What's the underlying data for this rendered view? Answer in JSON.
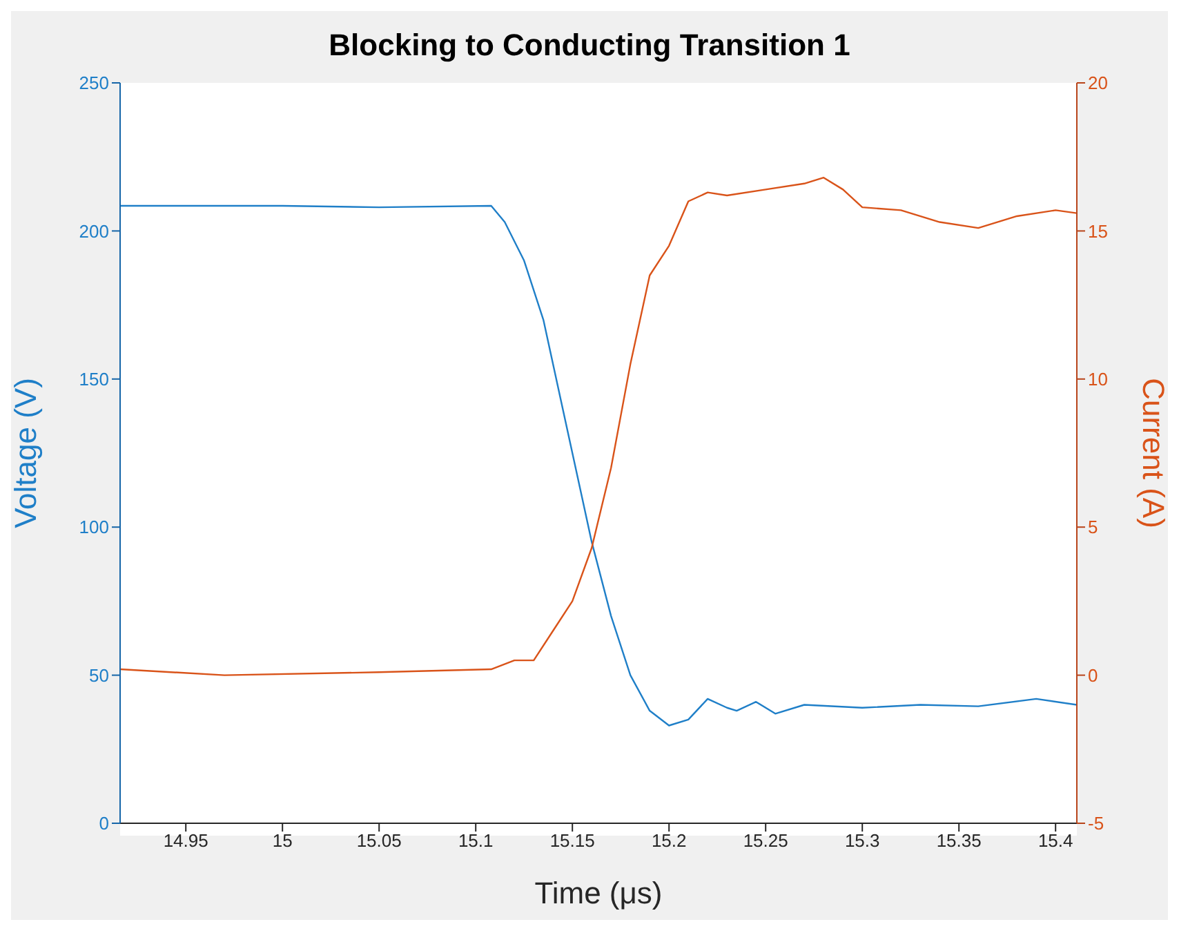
{
  "chart_data": {
    "type": "line",
    "title": "Blocking to Conducting Transition 1",
    "xlabel": "Time (μs)",
    "ylabel": "Voltage (V)",
    "y2label": "Current (A)",
    "xlim": [
      14.916,
      15.411
    ],
    "xticks": [
      14.95,
      15,
      15.05,
      15.1,
      15.15,
      15.2,
      15.25,
      15.3,
      15.35,
      15.4
    ],
    "ylim": [
      0,
      250
    ],
    "yticks": [
      0,
      50,
      100,
      150,
      200,
      250
    ],
    "y2lim": [
      -5,
      20
    ],
    "y2ticks": [
      -5,
      0,
      5,
      10,
      15,
      20
    ],
    "marker": "none",
    "line_style": "solid",
    "series": [
      {
        "color": "#1f7fc8",
        "x": [
          14.916,
          14.95,
          15.0,
          15.05,
          15.108,
          15.115,
          15.125,
          15.135,
          15.145,
          15.155,
          15.16,
          15.17,
          15.18,
          15.19,
          15.2,
          15.21,
          15.22,
          15.23,
          15.235,
          15.245,
          15.255,
          15.27,
          15.3,
          15.33,
          15.36,
          15.39,
          15.411
        ],
        "values": [
          208.5,
          208.5,
          208.5,
          208,
          208.5,
          203,
          190,
          170,
          140,
          110,
          95,
          70,
          50,
          38,
          33,
          35,
          42,
          39,
          38,
          41,
          37,
          40,
          39,
          40,
          39.5,
          42,
          40
        ]
      },
      {
        "color": "#d95319",
        "axis": "y2",
        "x": [
          14.916,
          14.97,
          15.05,
          15.108,
          15.12,
          15.13,
          15.14,
          15.15,
          15.16,
          15.17,
          15.18,
          15.19,
          15.2,
          15.21,
          15.22,
          15.23,
          15.25,
          15.27,
          15.28,
          15.29,
          15.3,
          15.32,
          15.34,
          15.36,
          15.38,
          15.4,
          15.411
        ],
        "values": [
          0.2,
          0,
          0.1,
          0.2,
          0.5,
          0.5,
          1.5,
          2.5,
          4.3,
          7,
          10.5,
          13.5,
          14.5,
          16,
          16.3,
          16.2,
          16.4,
          16.6,
          16.8,
          16.4,
          15.8,
          15.7,
          15.3,
          15.1,
          15.5,
          15.7,
          15.6
        ]
      }
    ]
  }
}
